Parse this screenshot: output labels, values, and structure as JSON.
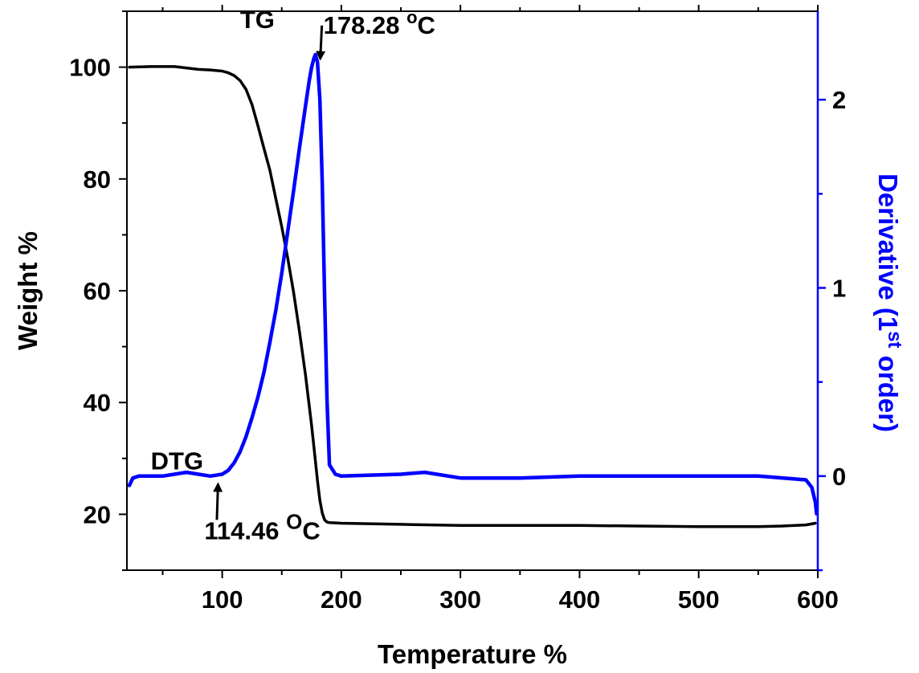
{
  "chart_data": {
    "type": "line",
    "title": "",
    "xlabel": "Temperature %",
    "ylabel_left": "Weight %",
    "ylabel_right": {
      "prefix": "Derivative (1",
      "sup": "st",
      "suffix": " order)"
    },
    "xlim": [
      20,
      600
    ],
    "ylim_left": [
      10,
      110
    ],
    "ylim_right": [
      -0.5,
      2.47
    ],
    "x_ticks": [
      100,
      200,
      300,
      400,
      500,
      600
    ],
    "x_tick_labels": [
      "100",
      "200",
      "300",
      "400",
      "500",
      "600"
    ],
    "y_left_ticks": [
      20,
      40,
      60,
      80,
      100
    ],
    "y_left_tick_labels": [
      "20",
      "40",
      "60",
      "80",
      "100"
    ],
    "y_right_ticks": [
      0,
      1,
      2
    ],
    "y_right_tick_labels": [
      "0",
      "1",
      "2"
    ],
    "colors": {
      "tg": "#000000",
      "dtg": "#0000ff",
      "axes": "#000000",
      "right_axis": "#0000ff"
    },
    "series": [
      {
        "name": "TG",
        "axis": "left",
        "x": [
          22,
          40,
          60,
          80,
          90,
          100,
          105,
          110,
          115,
          120,
          125,
          130,
          135,
          140,
          145,
          150,
          155,
          160,
          165,
          170,
          175,
          178,
          180,
          182,
          184,
          186,
          188,
          190,
          200,
          250,
          300,
          350,
          400,
          450,
          500,
          550,
          570,
          590,
          598
        ],
        "y": [
          100,
          100.1,
          100.1,
          99.6,
          99.5,
          99.3,
          99.0,
          98.5,
          97.6,
          96.0,
          93.3,
          89.5,
          85.5,
          81.6,
          76.5,
          71.4,
          65.8,
          59.6,
          52.5,
          44.8,
          36.0,
          30.0,
          26.0,
          22.5,
          20.2,
          19.0,
          18.6,
          18.5,
          18.4,
          18.2,
          18.0,
          18.0,
          18.0,
          17.9,
          17.8,
          17.8,
          17.9,
          18.1,
          18.4
        ]
      },
      {
        "name": "DTG",
        "axis": "right",
        "x": [
          22,
          25,
          30,
          50,
          70,
          80,
          90,
          100,
          105,
          110,
          115,
          120,
          125,
          130,
          135,
          140,
          145,
          150,
          155,
          160,
          165,
          170,
          173,
          175,
          177,
          178.28,
          180,
          182,
          184,
          186,
          188,
          190,
          195,
          200,
          250,
          270,
          300,
          350,
          400,
          450,
          500,
          550,
          590,
          595,
          598,
          599
        ],
        "y": [
          -0.05,
          -0.01,
          0.0,
          0.0,
          0.02,
          0.01,
          0.0,
          0.01,
          0.03,
          0.07,
          0.13,
          0.21,
          0.31,
          0.42,
          0.55,
          0.71,
          0.88,
          1.08,
          1.3,
          1.52,
          1.75,
          1.97,
          2.1,
          2.17,
          2.22,
          2.24,
          2.2,
          2.0,
          1.55,
          0.95,
          0.4,
          0.06,
          0.01,
          0.0,
          0.01,
          0.02,
          -0.01,
          -0.01,
          0.0,
          0.0,
          0.0,
          0.0,
          -0.02,
          -0.06,
          -0.14,
          -0.2
        ]
      }
    ],
    "annotations": [
      {
        "text": "TG",
        "sup": "",
        "tail": "",
        "x": 115,
        "y": 107
      },
      {
        "text": "DTG",
        "sup": "",
        "tail": "",
        "x": 40,
        "y": 28
      },
      {
        "text": "178.28 ",
        "sup": "o",
        "tail": "C",
        "x": 185,
        "y": 106,
        "arrow_to": [
          178.28,
          2.23
        ]
      },
      {
        "text": "114.46 ",
        "sup": "O",
        "tail": "C",
        "x": 85,
        "y": 15.5,
        "arrow_from_x": 95.5,
        "arrow_from_y": 19,
        "arrow_to": [
          96.5,
          0.0
        ]
      }
    ]
  }
}
